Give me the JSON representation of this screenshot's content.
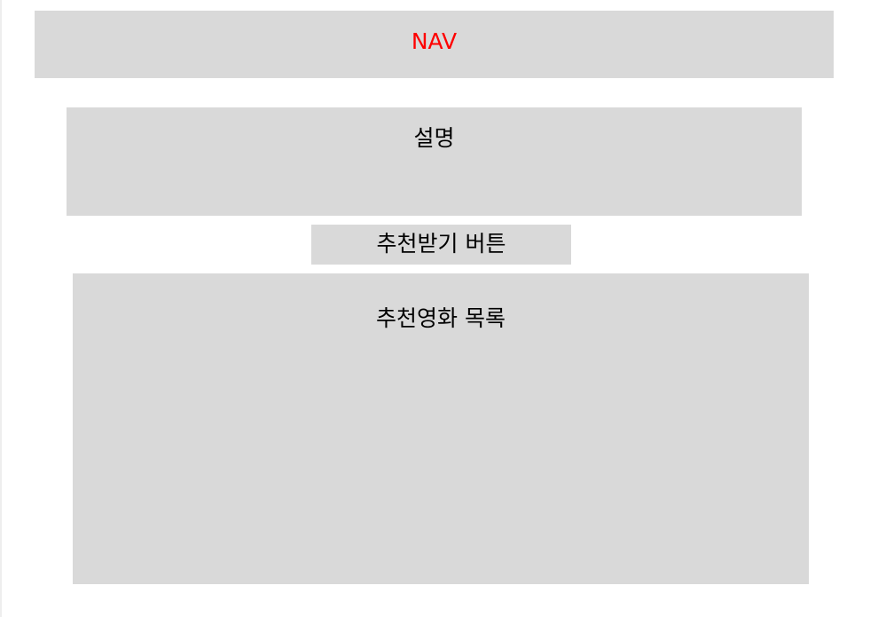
{
  "nav": {
    "label": "NAV",
    "label_color": "#ff0000"
  },
  "description": {
    "label": "설명"
  },
  "recommend_button": {
    "label": "추천받기 버튼"
  },
  "movie_list": {
    "label": "추천영화 목록"
  },
  "colors": {
    "box_fill": "#d9d9d9",
    "background": "#ffffff"
  }
}
